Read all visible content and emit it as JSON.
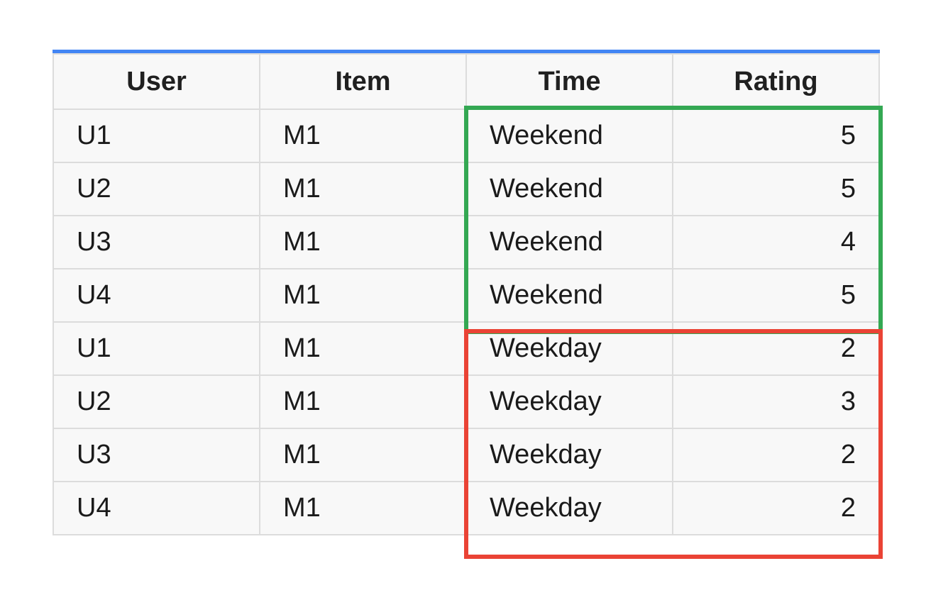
{
  "table": {
    "headers": [
      "User",
      "Item",
      "Time",
      "Rating"
    ],
    "rows": [
      [
        "U1",
        "M1",
        "Weekend",
        "5"
      ],
      [
        "U2",
        "M1",
        "Weekend",
        "5"
      ],
      [
        "U3",
        "M1",
        "Weekend",
        "4"
      ],
      [
        "U4",
        "M1",
        "Weekend",
        "5"
      ],
      [
        "U1",
        "M1",
        "Weekday",
        "2"
      ],
      [
        "U2",
        "M1",
        "Weekday",
        "3"
      ],
      [
        "U3",
        "M1",
        "Weekday",
        "2"
      ],
      [
        "U4",
        "M1",
        "Weekday",
        "2"
      ]
    ]
  },
  "highlights": {
    "weekend_color": "#34a853",
    "weekday_color": "#ea4335",
    "header_rule_color": "#4285f4"
  }
}
